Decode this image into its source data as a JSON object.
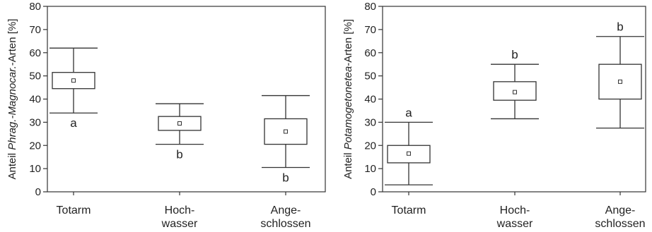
{
  "chart_data": [
    {
      "type": "box",
      "ylabel_parts": [
        "Anteil ",
        "Phrag.-Magnocar.",
        "-Arten [%]"
      ],
      "ylim": [
        0,
        80
      ],
      "yticks": [
        "0",
        "10",
        "20",
        "30",
        "40",
        "50",
        "60",
        "70",
        "80"
      ],
      "categories": [
        [
          "Totarm"
        ],
        [
          "Hoch-",
          "wasser"
        ],
        [
          "Ange-",
          "schlossen"
        ]
      ],
      "boxes": [
        {
          "min": 34,
          "q1": 44.5,
          "mean": 48,
          "q3": 51.5,
          "max": 62,
          "letter": "a",
          "letter_pos": "below"
        },
        {
          "min": 20.5,
          "q1": 26.5,
          "mean": 29.5,
          "q3": 32.5,
          "max": 38,
          "letter": "b",
          "letter_pos": "below"
        },
        {
          "min": 10.5,
          "q1": 20.5,
          "mean": 26,
          "q3": 31.5,
          "max": 41.5,
          "letter": "b",
          "letter_pos": "below"
        }
      ]
    },
    {
      "type": "box",
      "ylabel_parts": [
        "Anteil ",
        "Potamogetonetea",
        "-Arten [%]"
      ],
      "ylim": [
        0,
        80
      ],
      "yticks": [
        "0",
        "10",
        "20",
        "30",
        "40",
        "50",
        "60",
        "70",
        "80"
      ],
      "categories": [
        [
          "Totarm"
        ],
        [
          "Hoch-",
          "wasser"
        ],
        [
          "Ange-",
          "schlossen"
        ]
      ],
      "boxes": [
        {
          "min": 3,
          "q1": 12.5,
          "mean": 16.5,
          "q3": 20,
          "max": 30,
          "letter": "a",
          "letter_pos": "above"
        },
        {
          "min": 31.5,
          "q1": 39.5,
          "mean": 43,
          "q3": 47.5,
          "max": 55,
          "letter": "b",
          "letter_pos": "above"
        },
        {
          "min": 27.5,
          "q1": 40,
          "mean": 47.5,
          "q3": 55,
          "max": 67,
          "letter": "b",
          "letter_pos": "above"
        }
      ]
    }
  ]
}
